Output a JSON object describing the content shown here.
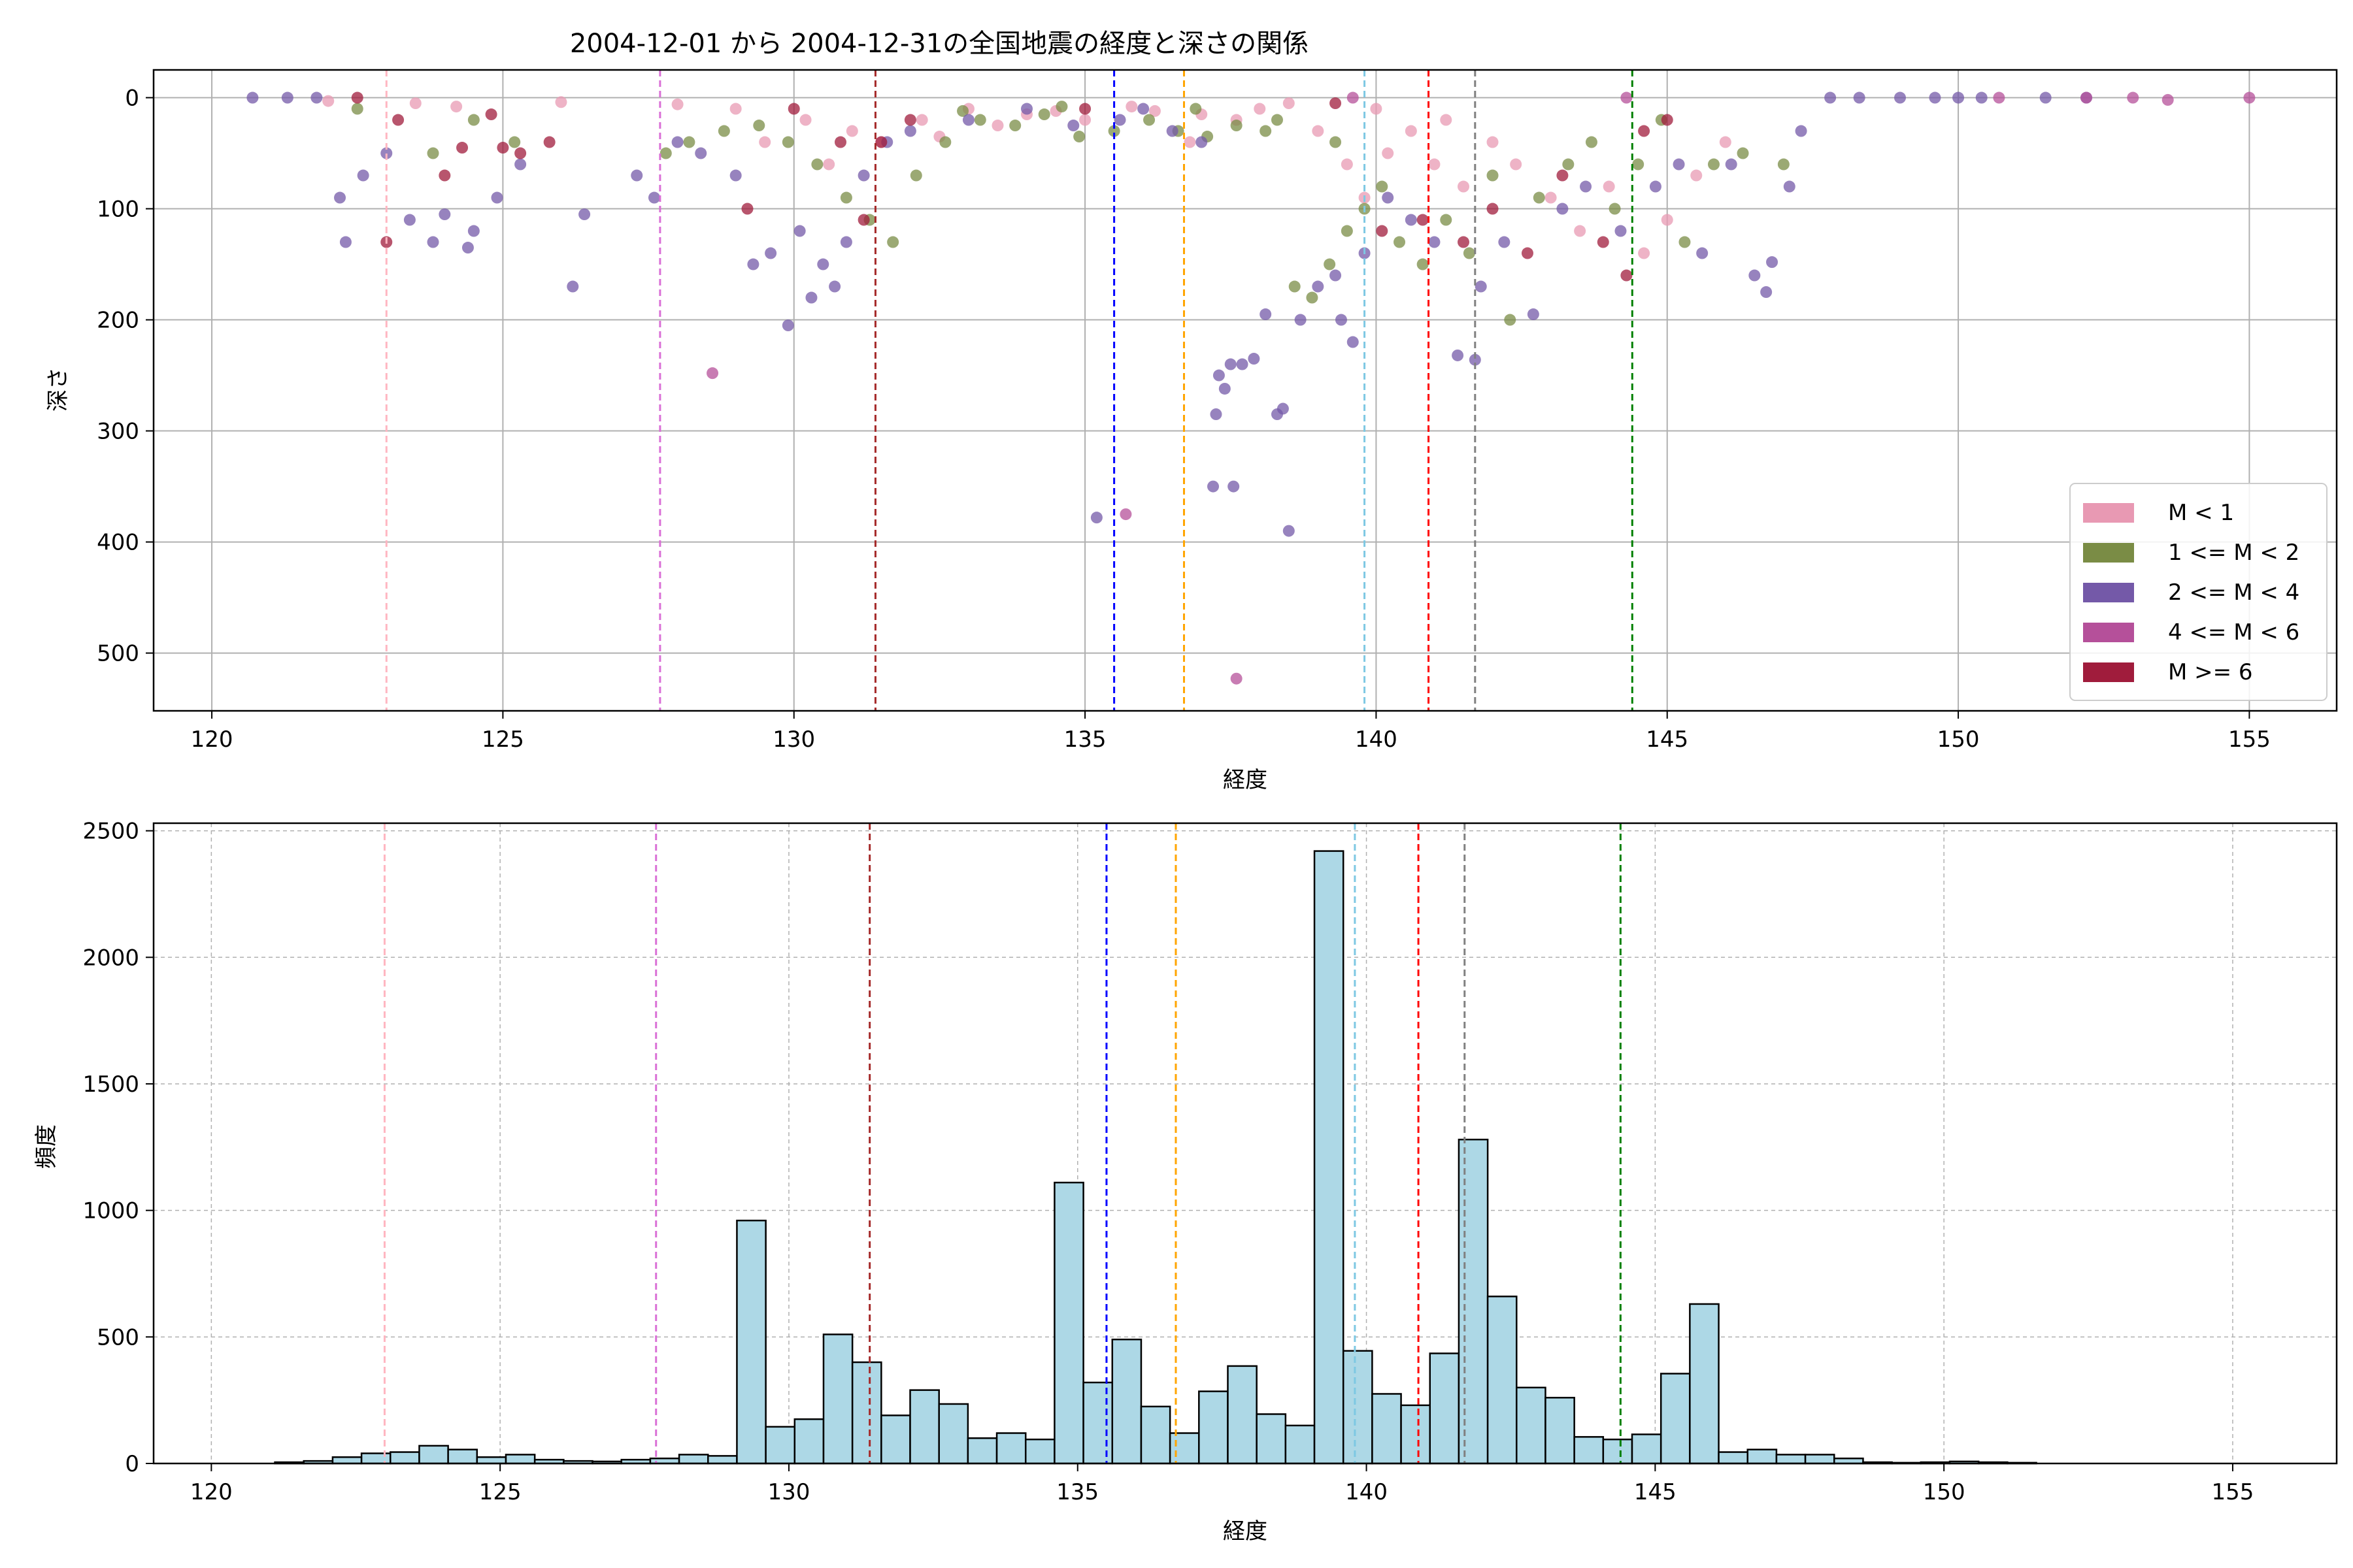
{
  "title": "2004-12-01 から 2004-12-31の全国地震の経度と深さの関係",
  "chart_data": [
    {
      "type": "scatter",
      "xlabel": "経度",
      "ylabel": "深さ",
      "xlim": [
        119,
        156.5
      ],
      "ylim": [
        552,
        -25
      ],
      "y_inverted": true,
      "xticks": [
        120,
        125,
        130,
        135,
        140,
        145,
        150,
        155
      ],
      "yticks": [
        0,
        100,
        200,
        300,
        400,
        500
      ],
      "grid": true,
      "legend_position": "lower-right",
      "legend": [
        {
          "label": "M < 1",
          "color": "#e899b3"
        },
        {
          "label": "1 <= M < 2",
          "color": "#7a8c45"
        },
        {
          "label": "2 <= M < 4",
          "color": "#7459a8"
        },
        {
          "label": "4 <= M < 6",
          "color": "#b5509a"
        },
        {
          "label": "M >= 6",
          "color": "#a01c3c"
        }
      ],
      "vlines": [
        {
          "x": 123.0,
          "color": "#ffb6c1"
        },
        {
          "x": 127.7,
          "color": "#da70d6"
        },
        {
          "x": 131.4,
          "color": "#a52a2a"
        },
        {
          "x": 135.5,
          "color": "#0000ff"
        },
        {
          "x": 136.7,
          "color": "#ffa500"
        },
        {
          "x": 139.8,
          "color": "#7ec8e3"
        },
        {
          "x": 140.9,
          "color": "#ff0000"
        },
        {
          "x": 141.7,
          "color": "#808080"
        },
        {
          "x": 144.4,
          "color": "#008000"
        }
      ],
      "series": [
        {
          "name": "M < 1",
          "color": "#e899b3",
          "points": [
            [
              122.0,
              3
            ],
            [
              123.5,
              5
            ],
            [
              124.2,
              8
            ],
            [
              126.0,
              4
            ],
            [
              128.0,
              6
            ],
            [
              129.0,
              10
            ],
            [
              130.2,
              20
            ],
            [
              131.0,
              30
            ],
            [
              131.5,
              40
            ],
            [
              132.2,
              20
            ],
            [
              133.0,
              10
            ],
            [
              134.0,
              15
            ],
            [
              134.5,
              12
            ],
            [
              135.0,
              20
            ],
            [
              135.8,
              8
            ],
            [
              136.2,
              12
            ],
            [
              137.0,
              15
            ],
            [
              137.6,
              20
            ],
            [
              138.0,
              10
            ],
            [
              139.0,
              30
            ],
            [
              139.5,
              60
            ],
            [
              139.8,
              90
            ],
            [
              140.2,
              50
            ],
            [
              140.6,
              30
            ],
            [
              141.0,
              60
            ],
            [
              141.5,
              80
            ],
            [
              142.0,
              40
            ],
            [
              142.4,
              60
            ],
            [
              143.0,
              90
            ],
            [
              143.5,
              120
            ],
            [
              144.0,
              80
            ],
            [
              144.6,
              140
            ],
            [
              145.0,
              110
            ],
            [
              145.5,
              70
            ],
            [
              146.0,
              40
            ],
            [
              141.2,
              20
            ],
            [
              140.0,
              10
            ],
            [
              138.5,
              5
            ],
            [
              136.8,
              40
            ],
            [
              133.5,
              25
            ],
            [
              132.5,
              35
            ],
            [
              130.6,
              60
            ],
            [
              129.5,
              40
            ]
          ]
        },
        {
          "name": "1 <= M < 2",
          "color": "#7a8c45",
          "points": [
            [
              122.5,
              10
            ],
            [
              123.8,
              50
            ],
            [
              124.5,
              20
            ],
            [
              125.2,
              40
            ],
            [
              127.8,
              50
            ],
            [
              128.2,
              40
            ],
            [
              128.8,
              30
            ],
            [
              129.4,
              25
            ],
            [
              129.9,
              40
            ],
            [
              130.4,
              60
            ],
            [
              130.9,
              90
            ],
            [
              131.3,
              110
            ],
            [
              131.7,
              130
            ],
            [
              132.1,
              70
            ],
            [
              132.6,
              40
            ],
            [
              133.2,
              20
            ],
            [
              133.8,
              25
            ],
            [
              134.3,
              15
            ],
            [
              134.9,
              35
            ],
            [
              135.5,
              30
            ],
            [
              136.1,
              20
            ],
            [
              136.6,
              30
            ],
            [
              137.1,
              35
            ],
            [
              137.6,
              25
            ],
            [
              138.1,
              30
            ],
            [
              138.6,
              170
            ],
            [
              138.9,
              180
            ],
            [
              139.2,
              150
            ],
            [
              139.5,
              120
            ],
            [
              139.8,
              100
            ],
            [
              140.1,
              80
            ],
            [
              140.4,
              130
            ],
            [
              140.8,
              150
            ],
            [
              141.2,
              110
            ],
            [
              141.6,
              140
            ],
            [
              142.0,
              70
            ],
            [
              142.3,
              200
            ],
            [
              142.8,
              90
            ],
            [
              143.3,
              60
            ],
            [
              143.7,
              40
            ],
            [
              144.1,
              100
            ],
            [
              144.5,
              60
            ],
            [
              144.9,
              20
            ],
            [
              145.3,
              130
            ],
            [
              145.8,
              60
            ],
            [
              146.3,
              50
            ],
            [
              147.0,
              60
            ],
            [
              139.3,
              40
            ],
            [
              138.3,
              20
            ],
            [
              136.9,
              10
            ],
            [
              134.6,
              8
            ],
            [
              132.9,
              12
            ]
          ]
        },
        {
          "name": "2 <= M < 4",
          "color": "#7459a8",
          "points": [
            [
              120.7,
              0
            ],
            [
              121.3,
              0
            ],
            [
              121.8,
              0
            ],
            [
              122.2,
              90
            ],
            [
              122.3,
              130
            ],
            [
              122.6,
              70
            ],
            [
              123.0,
              50
            ],
            [
              123.4,
              110
            ],
            [
              123.8,
              130
            ],
            [
              124.0,
              105
            ],
            [
              124.4,
              135
            ],
            [
              124.5,
              120
            ],
            [
              124.9,
              90
            ],
            [
              125.3,
              60
            ],
            [
              126.2,
              170
            ],
            [
              126.4,
              105
            ],
            [
              127.3,
              70
            ],
            [
              127.6,
              90
            ],
            [
              128.0,
              40
            ],
            [
              128.4,
              50
            ],
            [
              129.0,
              70
            ],
            [
              129.3,
              150
            ],
            [
              129.6,
              140
            ],
            [
              129.9,
              205
            ],
            [
              130.1,
              120
            ],
            [
              130.3,
              180
            ],
            [
              130.5,
              150
            ],
            [
              130.7,
              170
            ],
            [
              130.9,
              130
            ],
            [
              131.2,
              70
            ],
            [
              131.6,
              40
            ],
            [
              132.0,
              30
            ],
            [
              133.0,
              20
            ],
            [
              134.0,
              10
            ],
            [
              134.8,
              25
            ],
            [
              135.2,
              378
            ],
            [
              135.6,
              20
            ],
            [
              136.0,
              10
            ],
            [
              136.5,
              30
            ],
            [
              137.0,
              40
            ],
            [
              137.2,
              350
            ],
            [
              137.25,
              285
            ],
            [
              137.3,
              250
            ],
            [
              137.4,
              262
            ],
            [
              137.5,
              240
            ],
            [
              137.55,
              350
            ],
            [
              137.7,
              240
            ],
            [
              137.9,
              235
            ],
            [
              138.1,
              195
            ],
            [
              138.3,
              285
            ],
            [
              138.4,
              280
            ],
            [
              138.5,
              390
            ],
            [
              138.7,
              200
            ],
            [
              139.0,
              170
            ],
            [
              139.3,
              160
            ],
            [
              139.4,
              200
            ],
            [
              139.6,
              220
            ],
            [
              139.8,
              140
            ],
            [
              140.2,
              90
            ],
            [
              140.6,
              110
            ],
            [
              141.0,
              130
            ],
            [
              141.4,
              232
            ],
            [
              141.7,
              236
            ],
            [
              141.8,
              170
            ],
            [
              142.2,
              130
            ],
            [
              142.7,
              195
            ],
            [
              143.2,
              100
            ],
            [
              143.6,
              80
            ],
            [
              144.2,
              120
            ],
            [
              144.8,
              80
            ],
            [
              145.2,
              60
            ],
            [
              145.6,
              140
            ],
            [
              146.1,
              60
            ],
            [
              146.5,
              160
            ],
            [
              146.7,
              175
            ],
            [
              146.8,
              148
            ],
            [
              147.1,
              80
            ],
            [
              147.3,
              30
            ],
            [
              147.8,
              0
            ],
            [
              148.3,
              0
            ],
            [
              149.0,
              0
            ],
            [
              149.6,
              0
            ],
            [
              150.0,
              0
            ],
            [
              150.4,
              0
            ],
            [
              151.5,
              0
            ],
            [
              152.2,
              0
            ]
          ]
        },
        {
          "name": "4 <= M < 6",
          "color": "#b5509a",
          "points": [
            [
              128.6,
              248
            ],
            [
              135.7,
              375
            ],
            [
              137.6,
              523
            ],
            [
              139.6,
              0
            ],
            [
              144.3,
              0
            ],
            [
              150.7,
              0
            ],
            [
              152.2,
              0
            ],
            [
              153.0,
              0
            ],
            [
              153.6,
              2
            ],
            [
              155.0,
              0
            ]
          ]
        },
        {
          "name": "M >= 6",
          "color": "#a01c3c",
          "points": [
            [
              122.5,
              0
            ],
            [
              123.0,
              130
            ],
            [
              123.2,
              20
            ],
            [
              124.0,
              70
            ],
            [
              124.3,
              45
            ],
            [
              124.8,
              15
            ],
            [
              125.0,
              45
            ],
            [
              125.3,
              50
            ],
            [
              125.8,
              40
            ],
            [
              129.2,
              100
            ],
            [
              130.0,
              10
            ],
            [
              130.8,
              40
            ],
            [
              131.2,
              110
            ],
            [
              131.5,
              40
            ],
            [
              132.0,
              20
            ],
            [
              135.0,
              10
            ],
            [
              139.3,
              5
            ],
            [
              140.1,
              120
            ],
            [
              140.8,
              110
            ],
            [
              141.5,
              130
            ],
            [
              142.0,
              100
            ],
            [
              142.6,
              140
            ],
            [
              143.2,
              70
            ],
            [
              143.9,
              130
            ],
            [
              144.3,
              160
            ],
            [
              144.6,
              30
            ],
            [
              145.0,
              20
            ]
          ]
        }
      ]
    },
    {
      "type": "bar",
      "subtype": "histogram",
      "xlabel": "経度",
      "ylabel": "頻度",
      "xlim": [
        119,
        156.8
      ],
      "ylim": [
        0,
        2530
      ],
      "xticks": [
        120,
        125,
        130,
        135,
        140,
        145,
        150,
        155
      ],
      "yticks": [
        0,
        500,
        1000,
        1500,
        2000,
        2500
      ],
      "grid": true,
      "bar_color": "#add8e6",
      "bin_start": 120.6,
      "bin_width": 0.5,
      "values": [
        0,
        5,
        10,
        25,
        40,
        45,
        70,
        55,
        25,
        35,
        15,
        10,
        8,
        15,
        20,
        35,
        30,
        960,
        145,
        175,
        510,
        400,
        190,
        290,
        235,
        100,
        120,
        95,
        1110,
        320,
        490,
        225,
        120,
        285,
        385,
        195,
        150,
        2420,
        445,
        275,
        230,
        435,
        1280,
        660,
        300,
        260,
        105,
        95,
        115,
        355,
        630,
        45,
        55,
        35,
        35,
        20,
        5,
        3,
        5,
        8,
        5,
        3,
        0,
        0,
        0,
        0,
        0,
        0,
        0,
        0,
        0,
        0
      ],
      "vlines": [
        {
          "x": 123.0,
          "color": "#ffb6c1"
        },
        {
          "x": 127.7,
          "color": "#da70d6"
        },
        {
          "x": 131.4,
          "color": "#a52a2a"
        },
        {
          "x": 135.5,
          "color": "#0000ff"
        },
        {
          "x": 136.7,
          "color": "#ffa500"
        },
        {
          "x": 139.8,
          "color": "#7ec8e3"
        },
        {
          "x": 140.9,
          "color": "#ff0000"
        },
        {
          "x": 141.7,
          "color": "#808080"
        },
        {
          "x": 144.4,
          "color": "#008000"
        }
      ]
    }
  ]
}
